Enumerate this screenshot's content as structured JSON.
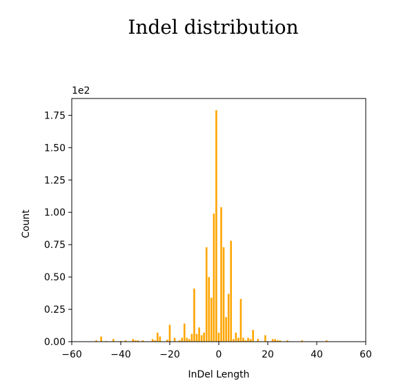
{
  "chart_data": {
    "type": "bar",
    "title": "Indel distribution",
    "xlabel": "InDel Length",
    "ylabel": "Count",
    "y_multiplier_label": "1e2",
    "xlim": [
      -60,
      60
    ],
    "ylim": [
      0,
      1.88
    ],
    "x_ticks": [
      -60,
      -40,
      -20,
      0,
      20,
      40,
      60
    ],
    "x_tick_labels": [
      "−60",
      "−40",
      "−20",
      "0",
      "20",
      "40",
      "60"
    ],
    "y_ticks": [
      0,
      0.25,
      0.5,
      0.75,
      1.0,
      1.25,
      1.5,
      1.75
    ],
    "y_tick_labels": [
      "0.00",
      "0.25",
      "0.50",
      "0.75",
      "1.00",
      "1.25",
      "1.50",
      "1.75"
    ],
    "grid": false,
    "bar_color": "#FFA500",
    "x": [
      -50,
      -48,
      -46,
      -43,
      -40,
      -38,
      -35,
      -34,
      -33,
      -31,
      -27,
      -26,
      -25,
      -24,
      -21,
      -20,
      -18,
      -16,
      -15,
      -14,
      -13,
      -12,
      -11,
      -10,
      -9,
      -8,
      -7,
      -6,
      -5,
      -4,
      -3,
      -2,
      -1,
      0,
      1,
      2,
      3,
      4,
      5,
      6,
      7,
      8,
      9,
      10,
      11,
      12,
      13,
      14,
      16,
      19,
      22,
      23,
      24,
      25,
      28,
      34,
      44
    ],
    "values": [
      0.01,
      0.04,
      0.005,
      0.02,
      0.005,
      0.01,
      0.02,
      0.01,
      0.01,
      0.01,
      0.02,
      0.01,
      0.07,
      0.04,
      0.015,
      0.13,
      0.03,
      0.01,
      0.03,
      0.14,
      0.03,
      0.02,
      0.06,
      0.41,
      0.06,
      0.11,
      0.05,
      0.07,
      0.73,
      0.5,
      0.34,
      0.99,
      1.79,
      0.07,
      1.04,
      0.73,
      0.19,
      0.37,
      0.78,
      0.02,
      0.07,
      0.03,
      0.33,
      0.03,
      0.01,
      0.03,
      0.02,
      0.09,
      0.02,
      0.05,
      0.02,
      0.02,
      0.01,
      0.01,
      0.01,
      0.01,
      0.01
    ]
  }
}
